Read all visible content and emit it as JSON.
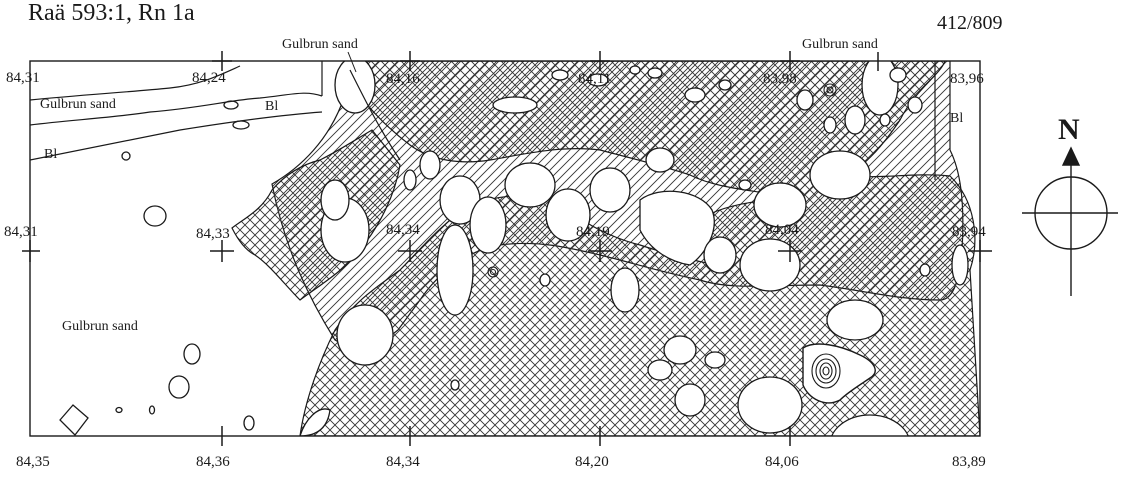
{
  "header": {
    "title_partial": "Raä 593:1, Rn 1a",
    "sheet_number": "412/809"
  },
  "map": {
    "line_color": "#1a1a1a",
    "hatch_color": "#333333",
    "area_labels": {
      "gulbrun_top_left": "Gulbrun sand",
      "gulbrun_top_center": "Gulbrun sand",
      "gulbrun_top_right": "Gulbrun sand",
      "gulbrun_lower_left": "Gulbrun sand",
      "bl_top_left_a": "Bl",
      "bl_top_left_b": "Bl",
      "bl_top_right": "Bl"
    },
    "elevations_top": [
      "84,31",
      "84,24",
      "84,16",
      "84,11",
      "83,98",
      "83,96"
    ],
    "elevations_mid": [
      "84,31",
      "84,33",
      "84,34",
      "84,19",
      "84,04",
      "83,94"
    ],
    "elevations_bottom": [
      "84,35",
      "84,36",
      "84,34",
      "84,20",
      "84,06",
      "83,89"
    ]
  },
  "compass": {
    "north_label": "N"
  }
}
